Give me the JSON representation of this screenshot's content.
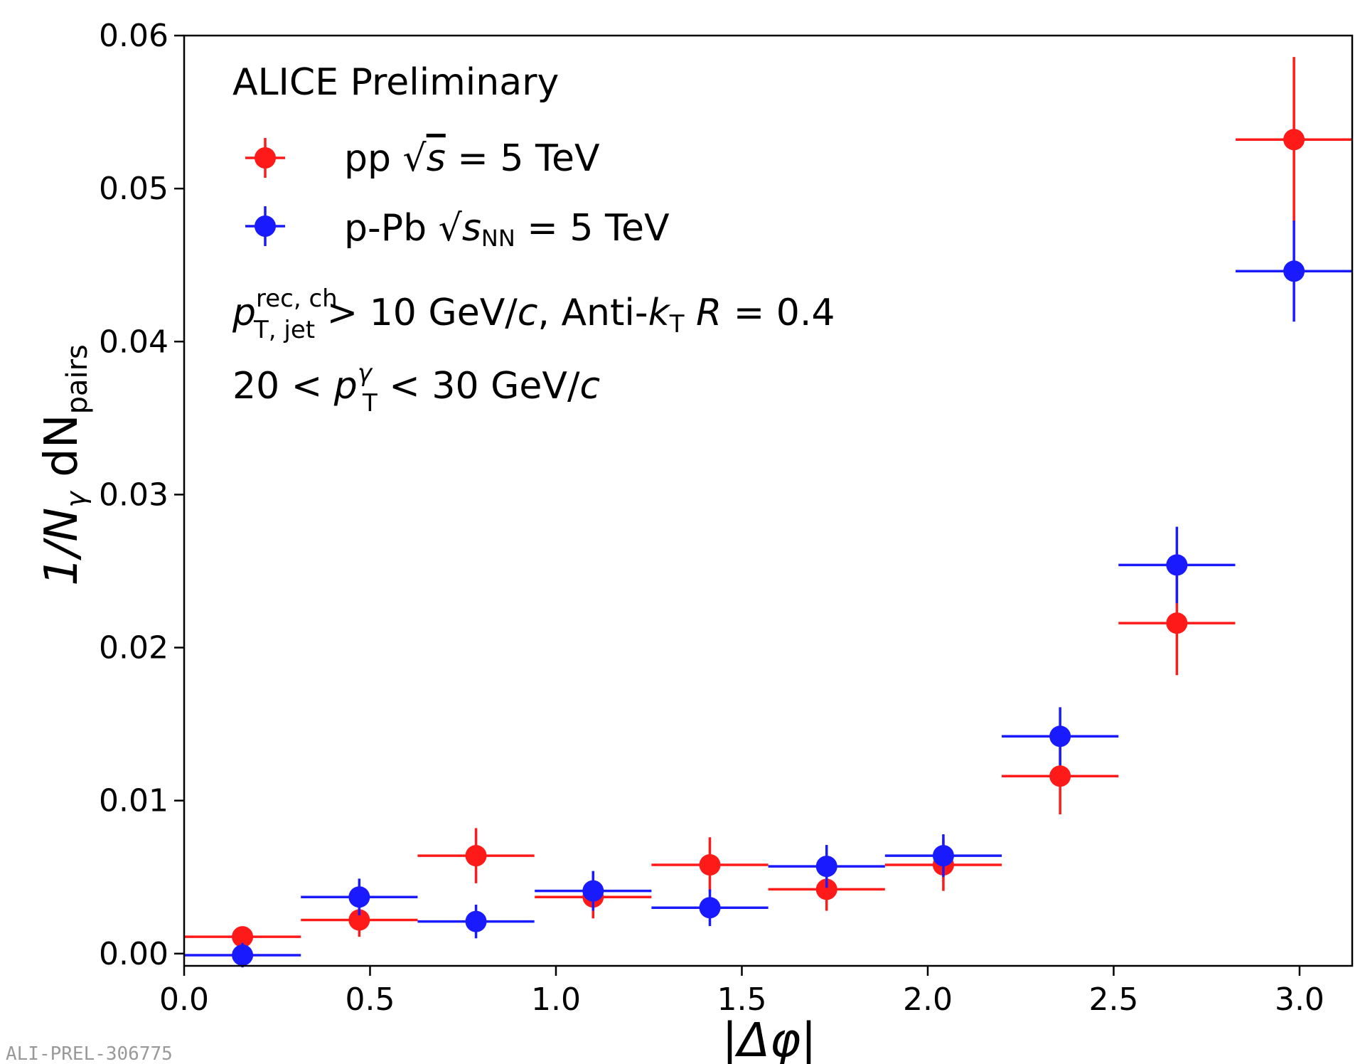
{
  "chart_data": {
    "type": "scatter",
    "title": "",
    "xlabel": "|Δφ|",
    "ylabel_parts": {
      "prefix": "1/N",
      "gamma": "γ",
      "mid": " dN",
      "sub": "pairs"
    },
    "xlim": [
      0.0,
      3.1416
    ],
    "ylim": [
      -0.0008,
      0.06
    ],
    "x_ticks": [
      0.0,
      0.5,
      1.0,
      1.5,
      2.0,
      2.5,
      3.0
    ],
    "x_tick_labels": [
      "0.0",
      "0.5",
      "1.0",
      "1.5",
      "2.0",
      "2.5",
      "3.0"
    ],
    "y_ticks": [
      0.0,
      0.01,
      0.02,
      0.03,
      0.04,
      0.05,
      0.06
    ],
    "y_tick_labels": [
      "0.00",
      "0.01",
      "0.02",
      "0.03",
      "0.04",
      "0.05",
      "0.06"
    ],
    "grid": false,
    "legend_position": "top-left",
    "series": [
      {
        "name": "pp √s = 5 TeV",
        "legend_parts": {
          "label": "pp ",
          "root_arg": "s",
          "root_sub": "",
          "rest": " = 5 TeV"
        },
        "color": "#ff1a1a",
        "x": [
          0.157,
          0.471,
          0.785,
          1.1,
          1.414,
          1.728,
          2.042,
          2.356,
          2.67,
          2.985
        ],
        "xerr": 0.157,
        "y": [
          0.0011,
          0.0022,
          0.0064,
          0.0037,
          0.0058,
          0.0042,
          0.0058,
          0.0116,
          0.0216,
          0.0532
        ],
        "yerr": [
          0.0006,
          0.0011,
          0.0018,
          0.0014,
          0.0018,
          0.0014,
          0.0017,
          0.0025,
          0.0034,
          0.0054
        ]
      },
      {
        "name": "p-Pb √sNN = 5 TeV",
        "legend_parts": {
          "label": "p-Pb ",
          "root_arg": "s",
          "root_sub": "NN",
          "rest": " = 5 TeV"
        },
        "color": "#1a1aff",
        "x": [
          0.157,
          0.471,
          0.785,
          1.1,
          1.414,
          1.728,
          2.042,
          2.356,
          2.67,
          2.985
        ],
        "xerr": 0.157,
        "y": [
          -0.0001,
          0.0037,
          0.0021,
          0.0041,
          0.003,
          0.0057,
          0.0064,
          0.0142,
          0.0254,
          0.0446
        ],
        "yerr": [
          0.0008,
          0.0012,
          0.0011,
          0.0013,
          0.0012,
          0.0014,
          0.0014,
          0.0019,
          0.0025,
          0.0033
        ]
      }
    ],
    "annotations": {
      "experiment": "ALICE Preliminary",
      "jet_cut": {
        "p": "p",
        "sup": "rec, ch",
        "sub": "T, jet",
        "mid": " > 10 GeV/",
        "c": "c",
        "anti": ", Anti-",
        "k": "k",
        "ksub": "T",
        "space": " ",
        "R": "R",
        "req": " = 0.4"
      },
      "photon_cut": {
        "pre": "20 < ",
        "p": "p",
        "sup": "γ",
        "sub": "T",
        "mid": " < 30 GeV/",
        "c": "c"
      },
      "preliminary_id": "ALI-PREL-306775"
    }
  }
}
